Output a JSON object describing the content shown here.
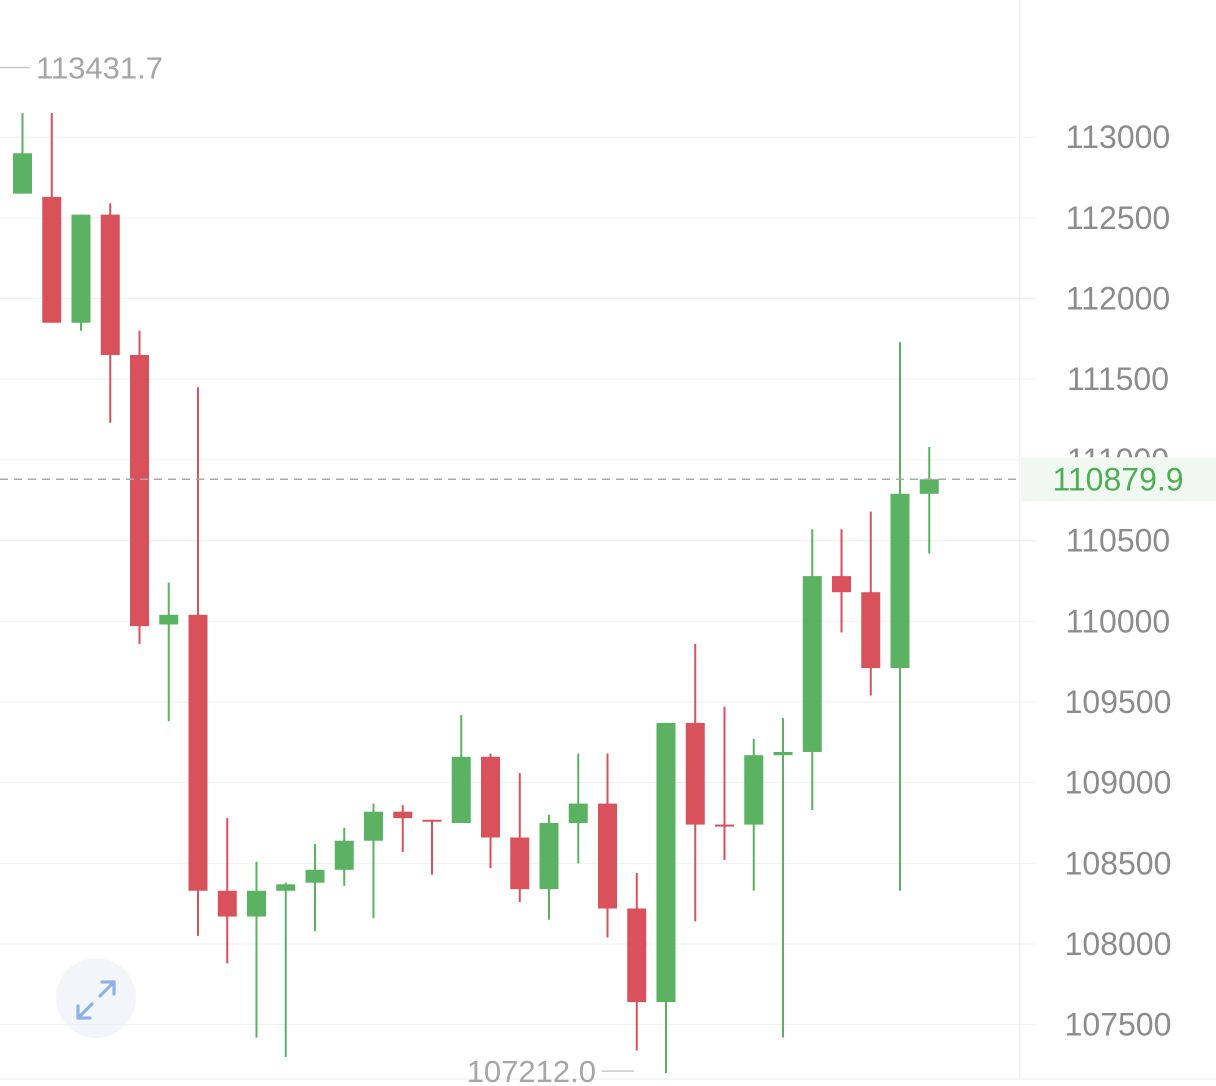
{
  "chart_data": {
    "type": "candlestick",
    "ylim": [
      107120,
      113850
    ],
    "y_ticks": [
      113000,
      112500,
      112000,
      111500,
      111000,
      110500,
      110000,
      109500,
      109000,
      108500,
      108000,
      107500
    ],
    "y_tick_labels": [
      "113000",
      "112500",
      "112000",
      "111500",
      "111000",
      "110500",
      "110000",
      "109500",
      "109000",
      "108500",
      "108000",
      "107500"
    ],
    "current_price": 110879.9,
    "current_price_label": "110879.9",
    "high_marker": {
      "value": 113431.7,
      "label": "113431.7"
    },
    "low_marker": {
      "value": 107212.0,
      "label": "107212.0"
    },
    "candles": [
      {
        "open": 112650,
        "high": 113150,
        "low": 112650,
        "close": 112900
      },
      {
        "open": 112630,
        "high": 113150,
        "low": 111850,
        "close": 111850
      },
      {
        "open": 111850,
        "high": 112520,
        "low": 111800,
        "close": 112520
      },
      {
        "open": 112520,
        "high": 112590,
        "low": 111230,
        "close": 111650
      },
      {
        "open": 111650,
        "high": 111800,
        "low": 109860,
        "close": 109970
      },
      {
        "open": 109980,
        "high": 110240,
        "low": 109380,
        "close": 110040
      },
      {
        "open": 110040,
        "high": 111450,
        "low": 108050,
        "close": 108330
      },
      {
        "open": 108330,
        "high": 108780,
        "low": 107880,
        "close": 108170
      },
      {
        "open": 108170,
        "high": 108510,
        "low": 107420,
        "close": 108330
      },
      {
        "open": 108330,
        "high": 108380,
        "low": 107300,
        "close": 108370
      },
      {
        "open": 108380,
        "high": 108620,
        "low": 108080,
        "close": 108460
      },
      {
        "open": 108460,
        "high": 108720,
        "low": 108360,
        "close": 108640
      },
      {
        "open": 108640,
        "high": 108870,
        "low": 108160,
        "close": 108820
      },
      {
        "open": 108820,
        "high": 108860,
        "low": 108570,
        "close": 108780
      },
      {
        "open": 108770,
        "high": 108770,
        "low": 108430,
        "close": 108760
      },
      {
        "open": 108750,
        "high": 109420,
        "low": 108750,
        "close": 109160
      },
      {
        "open": 109160,
        "high": 109180,
        "low": 108470,
        "close": 108660
      },
      {
        "open": 108660,
        "high": 109060,
        "low": 108260,
        "close": 108340
      },
      {
        "open": 108340,
        "high": 108800,
        "low": 108150,
        "close": 108750
      },
      {
        "open": 108750,
        "high": 109180,
        "low": 108500,
        "close": 108870
      },
      {
        "open": 108870,
        "high": 109180,
        "low": 108040,
        "close": 108220
      },
      {
        "open": 108220,
        "high": 108440,
        "low": 107340,
        "close": 107640
      },
      {
        "open": 107640,
        "high": 109370,
        "low": 107200,
        "close": 109370
      },
      {
        "open": 109370,
        "high": 109860,
        "low": 108140,
        "close": 108740
      },
      {
        "open": 108740,
        "high": 109470,
        "low": 108520,
        "close": 108730
      },
      {
        "open": 108740,
        "high": 109270,
        "low": 108330,
        "close": 109170
      },
      {
        "open": 109170,
        "high": 109400,
        "low": 107420,
        "close": 109190
      },
      {
        "open": 109190,
        "high": 110570,
        "low": 108830,
        "close": 110280
      },
      {
        "open": 110280,
        "high": 110570,
        "low": 109930,
        "close": 110180
      },
      {
        "open": 110180,
        "high": 110680,
        "low": 109540,
        "close": 109710
      },
      {
        "open": 109710,
        "high": 111730,
        "low": 108330,
        "close": 110790
      },
      {
        "open": 110790,
        "high": 111080,
        "low": 110420,
        "close": 110880
      }
    ],
    "colors": {
      "up": "#5bb262",
      "down": "#d9515b",
      "grid": "#f0f0f0",
      "axis_text": "#8c8c8c",
      "marker_text": "#a6a6a6",
      "price_line": "#aaaaaa",
      "price_label_text": "#4fae55",
      "price_label_bg": "#f1f8f1"
    },
    "grid": true
  },
  "controls": {
    "expand_icon": "expand-diagonal-arrows-icon",
    "expand_icon_color": "#8eb2e6"
  }
}
